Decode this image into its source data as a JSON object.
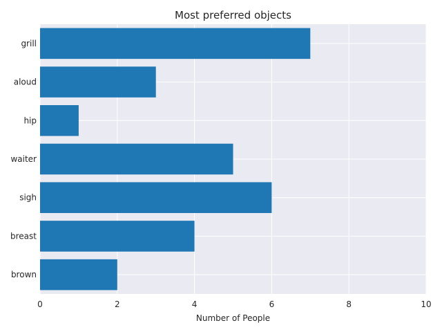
{
  "chart_data": {
    "type": "bar",
    "orientation": "horizontal",
    "title": "Most preferred objects",
    "xlabel": "Number of People",
    "ylabel": "",
    "categories": [
      "grill",
      "aloud",
      "hip",
      "waiter",
      "sigh",
      "breast",
      "brown"
    ],
    "values": [
      7,
      3,
      1,
      5,
      6,
      4,
      2
    ],
    "xlim": [
      0,
      10
    ],
    "xticks": [
      0,
      2,
      4,
      6,
      8,
      10
    ],
    "grid": true,
    "bar_color": "#1f77b4",
    "background_color": "#eaeaf2",
    "grid_color": "#ffffff"
  }
}
